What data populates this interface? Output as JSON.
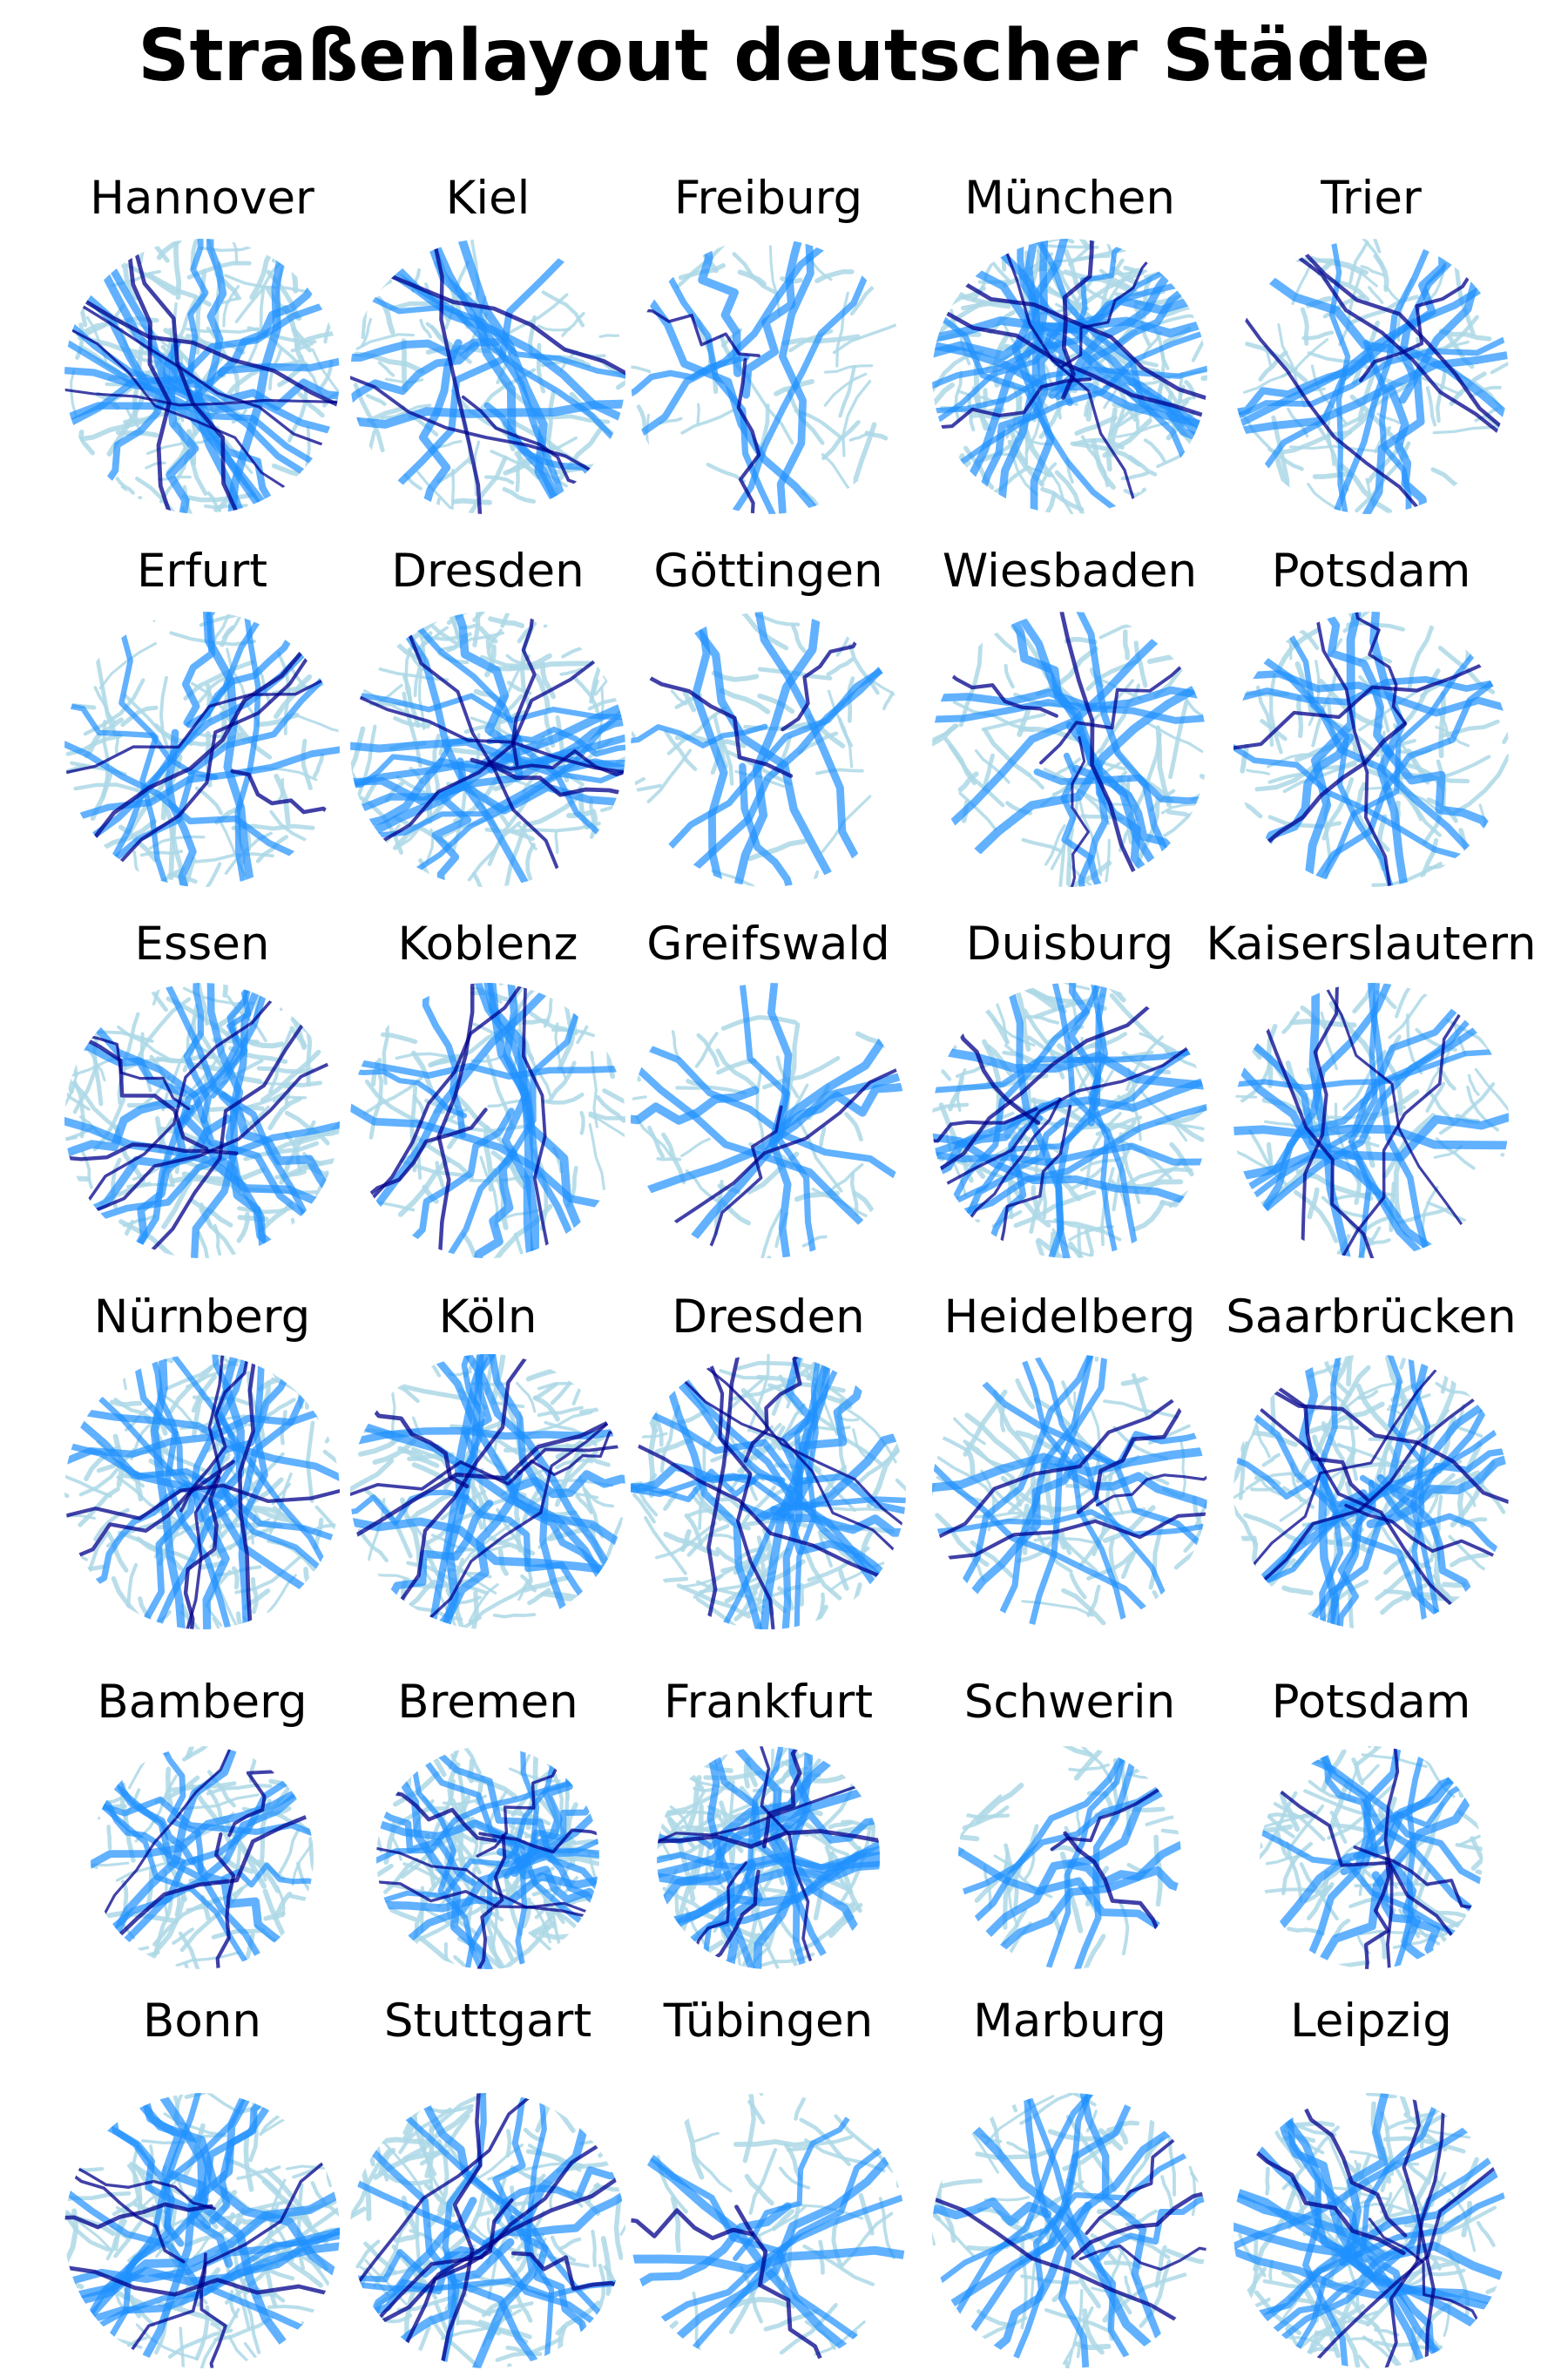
{
  "title": "Straßenlayout deutscher Städte",
  "colors": {
    "minor_roads": "#add8e6",
    "main_roads": "#1e90ff",
    "major_roads": "#00008b",
    "background": "#ffffff"
  },
  "cities": [
    {
      "name": "Hannover",
      "shape": "full",
      "density": "high"
    },
    {
      "name": "Kiel",
      "shape": "full",
      "density": "medium"
    },
    {
      "name": "Freiburg",
      "shape": "full",
      "density": "low"
    },
    {
      "name": "München",
      "shape": "full",
      "density": "very-high"
    },
    {
      "name": "Trier",
      "shape": "full",
      "density": "medium"
    },
    {
      "name": "Erfurt",
      "shape": "full",
      "density": "medium"
    },
    {
      "name": "Dresden",
      "shape": "full",
      "density": "high"
    },
    {
      "name": "Göttingen",
      "shape": "full",
      "density": "low"
    },
    {
      "name": "Wiesbaden",
      "shape": "full",
      "density": "medium"
    },
    {
      "name": "Potsdam",
      "shape": "full",
      "density": "medium"
    },
    {
      "name": "Essen",
      "shape": "full",
      "density": "high"
    },
    {
      "name": "Koblenz",
      "shape": "full",
      "density": "medium"
    },
    {
      "name": "Greifswald",
      "shape": "full",
      "density": "low"
    },
    {
      "name": "Duisburg",
      "shape": "full",
      "density": "high"
    },
    {
      "name": "Kaiserslautern",
      "shape": "full",
      "density": "medium"
    },
    {
      "name": "Nürnberg",
      "shape": "full",
      "density": "high"
    },
    {
      "name": "Köln",
      "shape": "full",
      "density": "high"
    },
    {
      "name": "Dresden",
      "shape": "full",
      "density": "high"
    },
    {
      "name": "Heidelberg",
      "shape": "full",
      "density": "medium"
    },
    {
      "name": "Saarbrücken",
      "shape": "full",
      "density": "high"
    },
    {
      "name": "Bamberg",
      "shape": "small",
      "density": "medium"
    },
    {
      "name": "Bremen",
      "shape": "small",
      "density": "high"
    },
    {
      "name": "Frankfurt",
      "shape": "small",
      "density": "high"
    },
    {
      "name": "Schwerin",
      "shape": "small",
      "density": "low"
    },
    {
      "name": "Potsdam",
      "shape": "small",
      "density": "medium"
    },
    {
      "name": "Bonn",
      "shape": "full",
      "density": "high"
    },
    {
      "name": "Stuttgart",
      "shape": "full",
      "density": "high"
    },
    {
      "name": "Tübingen",
      "shape": "full",
      "density": "low"
    },
    {
      "name": "Marburg",
      "shape": "full",
      "density": "medium"
    },
    {
      "name": "Leipzig",
      "shape": "full",
      "density": "high"
    }
  ]
}
